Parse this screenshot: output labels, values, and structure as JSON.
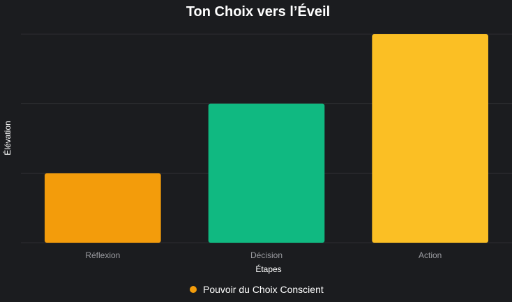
{
  "chart_data": {
    "type": "bar",
    "title": "Ton Choix vers l’Éveil",
    "xlabel": "Étapes",
    "ylabel": "Élévation",
    "categories": [
      "Réflexion",
      "Décision",
      "Action"
    ],
    "series": [
      {
        "name": "Pouvoir du Choix Conscient",
        "values": [
          1,
          2,
          3
        ],
        "colors": [
          "#f39c0b",
          "#10b981",
          "#fbbf24"
        ]
      }
    ],
    "ylim": [
      0,
      3
    ],
    "y_tick_labels_visible": false,
    "grid": true,
    "legend_position": "bottom",
    "legend_marker_color": "#f39c0b"
  }
}
